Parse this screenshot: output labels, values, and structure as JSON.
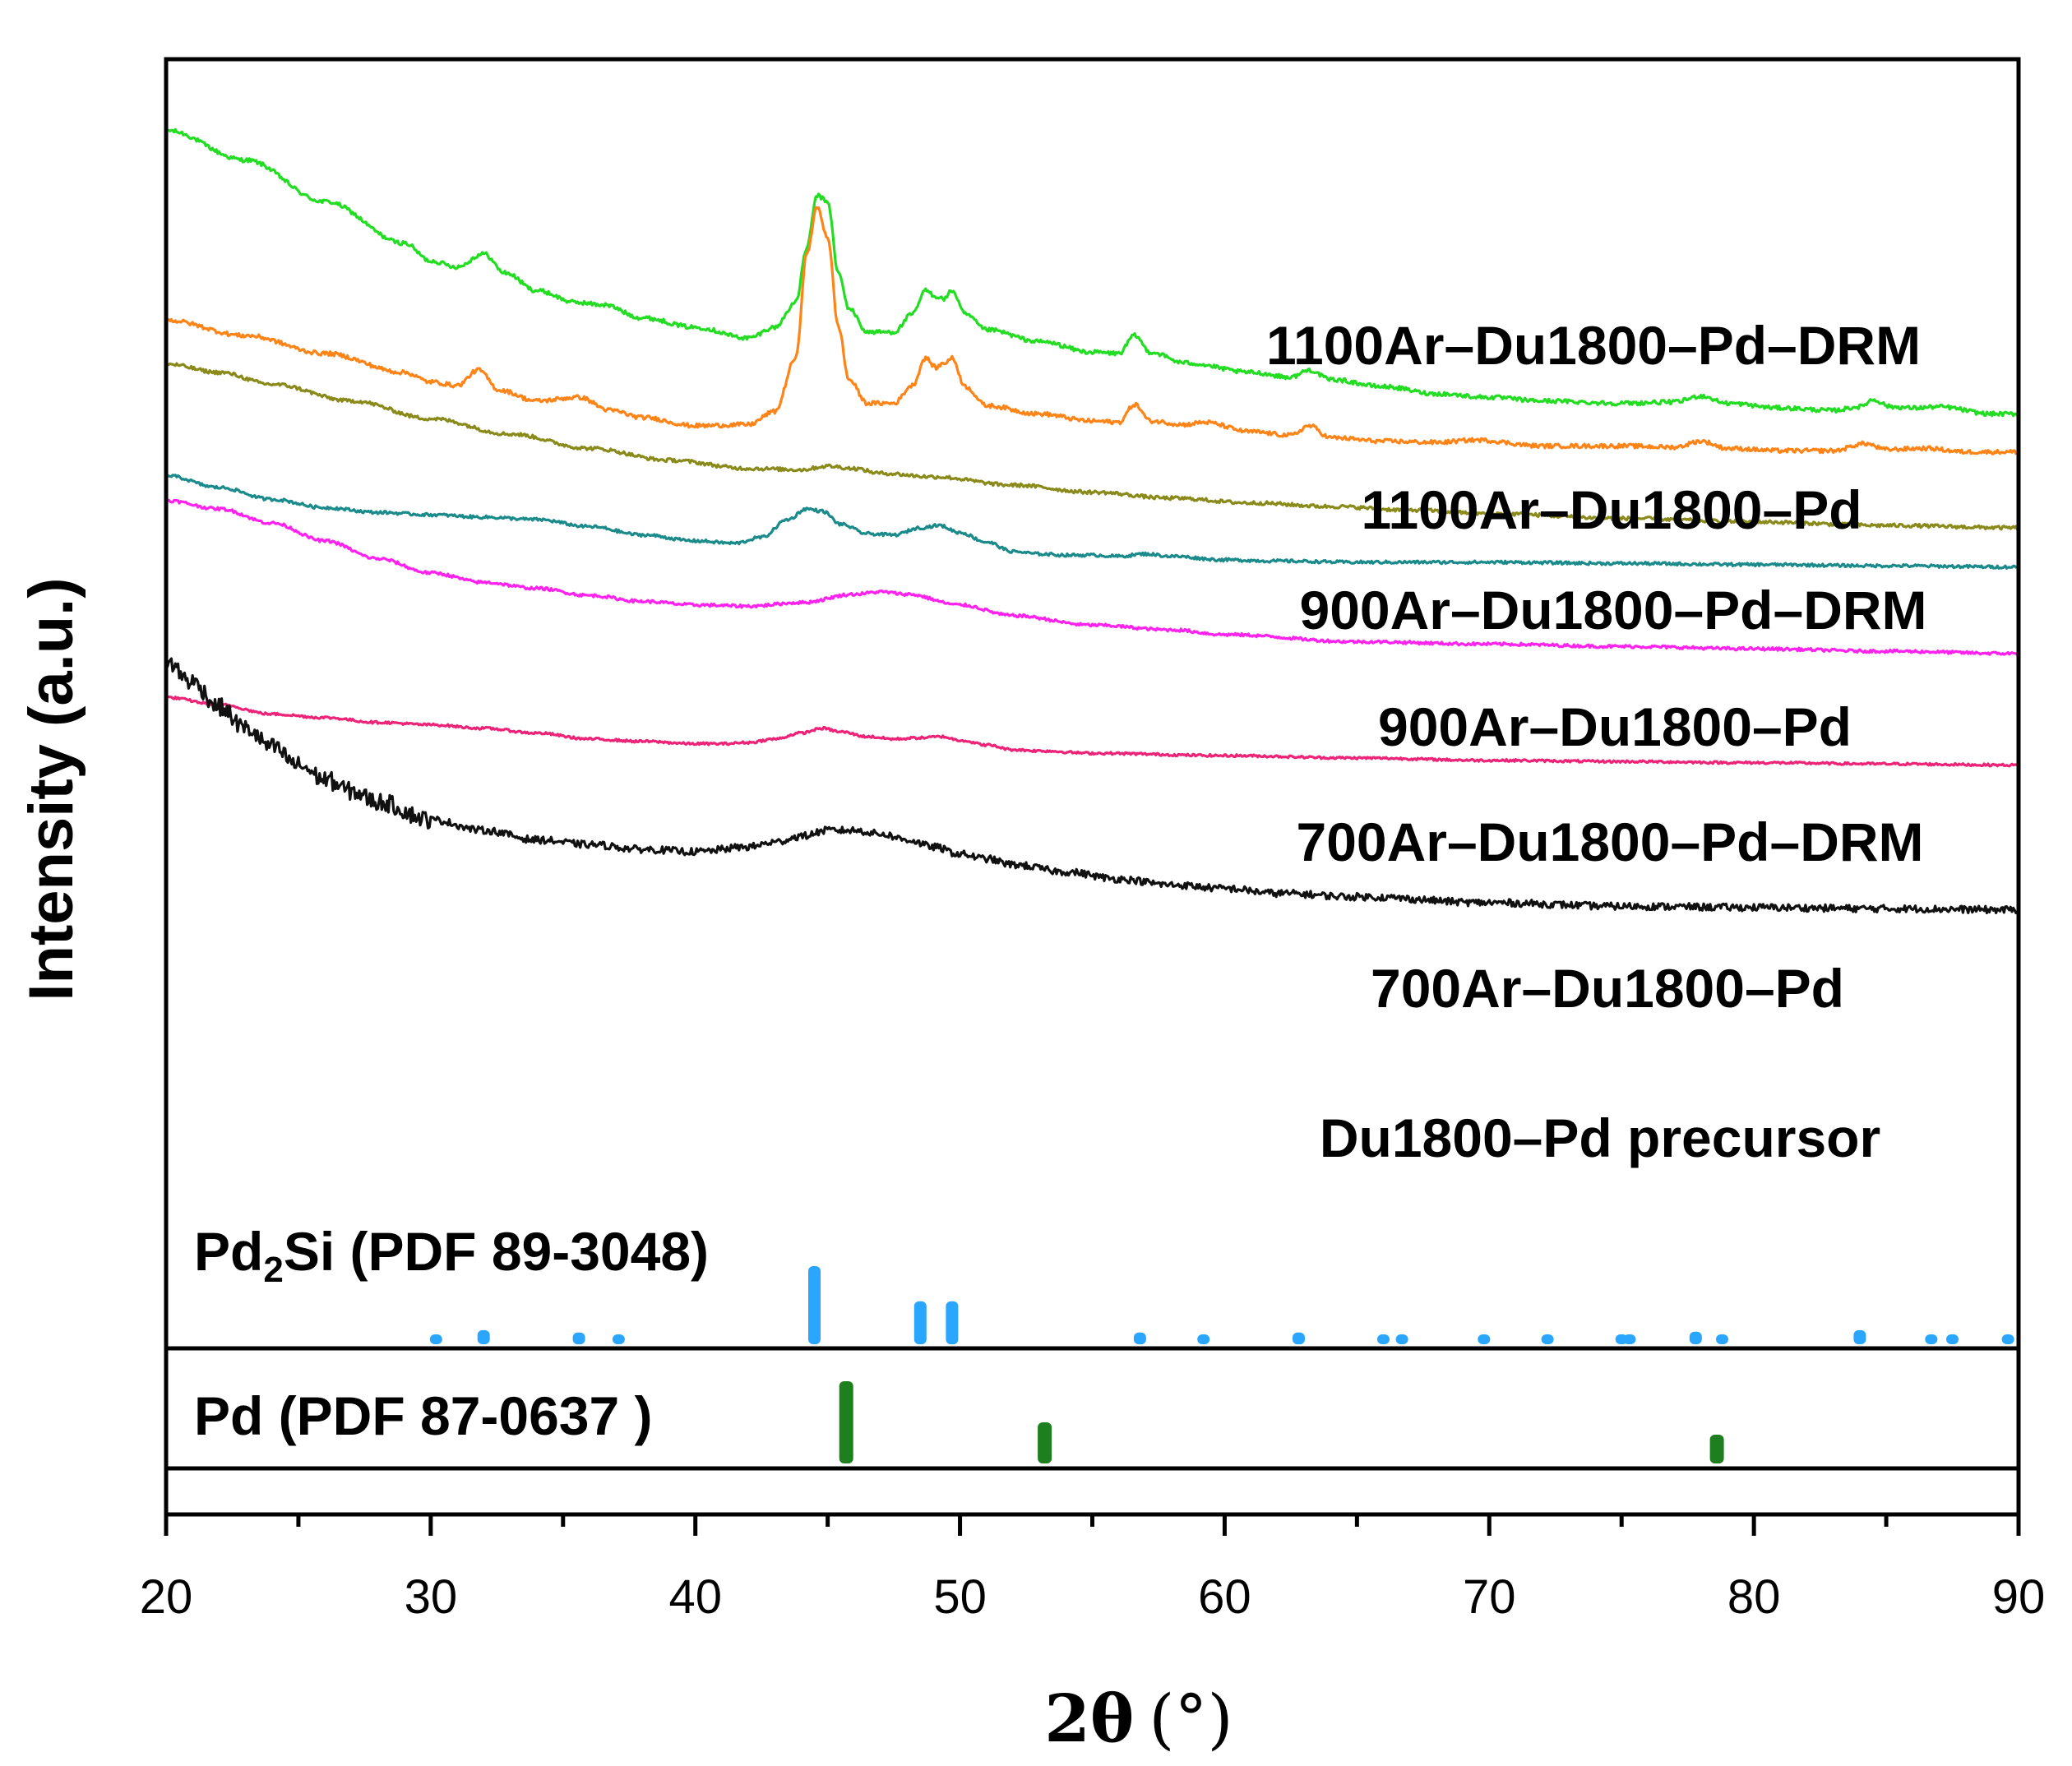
{
  "chart_data": {
    "type": "line",
    "title": "",
    "xlabel_main": "2θ",
    "xlabel_unit": "(°)",
    "ylabel": "Intensity (a.u.)",
    "xlim": [
      20,
      90
    ],
    "ylim": [
      0,
      100
    ],
    "xticks": [
      20,
      30,
      40,
      50,
      60,
      70,
      80,
      90
    ],
    "grid": false,
    "series": [
      {
        "name": "1100Ar–Du1800–Pd–DRM",
        "color": "#22dd22",
        "noise": 0.35,
        "x": [
          20,
          23,
          26,
          29,
          30,
          31,
          32,
          32.8,
          34,
          35.5,
          36.5,
          38,
          40,
          42,
          43,
          43.8,
          44.2,
          44.6,
          45,
          45.4,
          45.8,
          46.5,
          47.5,
          48.2,
          48.7,
          49.1,
          49.4,
          49.7,
          50.2,
          51,
          53,
          55,
          56,
          56.6,
          57.2,
          58.5,
          61,
          62.5,
          63.2,
          64,
          66,
          68,
          70,
          72,
          75,
          77,
          78,
          79,
          81,
          83,
          84,
          84.5,
          85.2,
          86,
          87,
          89,
          90
        ],
        "y": [
          94,
          91.5,
          88,
          84.5,
          83,
          82.5,
          83.6,
          82,
          80.5,
          79.5,
          79.3,
          78.2,
          77.4,
          76.5,
          77.4,
          79.5,
          84,
          88.5,
          88,
          82,
          79,
          77,
          77,
          78.5,
          80.5,
          80,
          79.8,
          80.5,
          78.5,
          77.2,
          76.2,
          75.3,
          75.2,
          76.7,
          75.3,
          74.4,
          73.6,
          73.2,
          73.8,
          73,
          72.4,
          71.8,
          71.5,
          71.2,
          71,
          71.1,
          71.6,
          71,
          70.6,
          70.4,
          70.7,
          71.3,
          70.7,
          70.6,
          70.7,
          70.1,
          70.1
        ]
      },
      {
        "name": "1100Ar–Du1800–Pd",
        "color": "#ff8418",
        "noise": 0.35,
        "x": [
          20,
          23,
          26,
          29,
          30,
          31,
          31.8,
          32.6,
          34,
          35.6,
          36.8,
          38,
          40,
          42,
          43,
          43.8,
          44.2,
          44.6,
          45,
          45.4,
          45.8,
          46.5,
          47.5,
          48.2,
          48.7,
          49.1,
          49.4,
          49.7,
          50.2,
          51,
          53,
          55,
          56,
          56.6,
          57.2,
          58.5,
          59.2,
          61,
          62.5,
          63.2,
          64,
          66,
          68,
          69.5,
          72,
          75,
          77,
          78,
          79,
          81,
          83,
          84.2,
          85,
          86.5,
          88,
          90
        ],
        "y": [
          78,
          76.7,
          75.2,
          73.6,
          72.8,
          72.5,
          73.8,
          72.1,
          71.2,
          71.5,
          70.4,
          69.8,
          69.1,
          69.2,
          70.3,
          74.8,
          83.5,
          87.5,
          85,
          77.5,
          73,
          71,
          71,
          72.5,
          74.8,
          74,
          74.4,
          74.8,
          72.4,
          70.8,
          70.1,
          69.5,
          69.4,
          70.9,
          69.5,
          69.2,
          69.4,
          68.6,
          68.3,
          69.1,
          68.1,
          67.8,
          67.7,
          67.9,
          67.4,
          67.4,
          67.3,
          67.8,
          67.2,
          67,
          67,
          67.6,
          67.1,
          67.2,
          66.9,
          66.9
        ]
      },
      {
        "name": "900Ar–Du1800–Pd–DRM",
        "color": "#8a8a1a",
        "noise": 0.3,
        "x": [
          20,
          22,
          24,
          27,
          30,
          33,
          36,
          39,
          42,
          44,
          45,
          46,
          47,
          49,
          52,
          55,
          58,
          61,
          64,
          67,
          70,
          75,
          80,
          85,
          90
        ],
        "y": [
          74.3,
          73.6,
          72.6,
          71.2,
          69.7,
          68.4,
          67.2,
          66.2,
          65.5,
          65.4,
          65.7,
          65.5,
          65.1,
          64.8,
          64.1,
          63.5,
          63,
          62.6,
          62.3,
          62,
          61.7,
          61.3,
          61,
          60.7,
          60.5
        ]
      },
      {
        "name": "900Ar–Du1800–Pd",
        "color": "#1a8a8a",
        "noise": 0.25,
        "x": [
          20,
          22,
          24,
          26,
          28,
          30,
          32,
          34,
          36,
          38,
          40,
          41.5,
          42.5,
          43.5,
          44.2,
          44.8,
          45.5,
          46.5,
          47.5,
          48.5,
          49.2,
          50,
          51,
          52,
          53,
          54,
          55,
          56,
          57,
          58,
          60,
          62,
          65,
          70,
          75,
          80,
          85,
          90
        ],
        "y": [
          64.9,
          63.9,
          62.9,
          62.2,
          61.8,
          61.6,
          61.4,
          61.2,
          60.6,
          59.9,
          59.4,
          59.2,
          59.7,
          61.2,
          62.1,
          61.9,
          60.8,
          60,
          59.9,
          60.5,
          60.7,
          60.1,
          59.3,
          58.5,
          58.3,
          58.2,
          58.2,
          58.1,
          58.3,
          58.1,
          57.8,
          57.7,
          57.6,
          57.6,
          57.5,
          57.4,
          57.3,
          57.2
        ]
      },
      {
        "name": "700Ar–Du1800–Pd–DRM",
        "color": "#ff22ee",
        "noise": 0.25,
        "x": [
          20,
          22,
          24,
          26,
          28,
          30,
          32,
          34,
          36,
          38,
          40,
          42,
          44,
          46,
          47,
          48,
          50,
          52,
          55,
          58,
          60,
          65,
          70,
          75,
          80,
          85,
          90
        ],
        "y": [
          62.8,
          62.1,
          60.9,
          59.4,
          57.9,
          56.7,
          55.9,
          55.4,
          54.8,
          54.3,
          54,
          53.9,
          54.2,
          54.9,
          55.1,
          54.9,
          54,
          53.1,
          52.3,
          51.9,
          51.5,
          50.9,
          50.7,
          50.5,
          50.3,
          50.1,
          49.9
        ]
      },
      {
        "name": "700Ar–Du1800–Pd",
        "color": "#ee2277",
        "noise": 0.2,
        "x": [
          20,
          22,
          24,
          26,
          28,
          30,
          32,
          34,
          36,
          38,
          40,
          41,
          42,
          43,
          44,
          44.8,
          45.5,
          46.5,
          47.5,
          48.5,
          49.3,
          50,
          51,
          52,
          53,
          55,
          60,
          65,
          70,
          75,
          80,
          85,
          90
        ],
        "y": [
          46.2,
          45.6,
          44.8,
          44.5,
          44.1,
          43.9,
          43.6,
          43.2,
          42.7,
          42.5,
          42.3,
          42.3,
          42.4,
          42.7,
          43.2,
          43.6,
          43.3,
          42.9,
          42.7,
          42.8,
          42.9,
          42.6,
          42.2,
          41.8,
          41.7,
          41.5,
          41.3,
          41.1,
          40.9,
          40.8,
          40.7,
          40.6,
          40.5
        ]
      },
      {
        "name": "Du1800–Pd precursor",
        "color": "#111111",
        "noise": 0.6,
        "x": [
          20,
          21,
          22,
          23,
          24,
          25,
          26,
          27,
          28,
          30,
          32,
          34,
          36,
          38,
          40,
          42,
          43,
          44,
          45,
          46,
          47,
          48,
          49,
          50,
          51,
          52,
          54,
          56,
          58,
          60,
          62,
          65,
          70,
          75,
          80,
          85,
          90
        ],
        "y": [
          49.2,
          47.5,
          45.4,
          43.6,
          42,
          40.5,
          39.3,
          38.3,
          37.4,
          35.9,
          35,
          34.2,
          33.8,
          33.4,
          33.2,
          33.6,
          34,
          34.5,
          35,
          35,
          34.7,
          34.2,
          33.6,
          33,
          32.6,
          32.1,
          31.5,
          30.9,
          30.4,
          30.1,
          29.7,
          29.4,
          28.9,
          28.6,
          28.5,
          28.4,
          28.3
        ]
      }
    ],
    "series_labels": [
      "1100Ar–Du1800–Pd–DRM",
      "1100Ar–Du1800–Pd",
      "900Ar–Du1800–Pd–DRM",
      "900Ar–Du1800–Pd",
      "700Ar–Du1800–Pd–DRM",
      "700Ar–Du1800–Pd",
      "Du1800–Pd precursor"
    ],
    "reference_patterns": [
      {
        "label_main": "Pd",
        "label_sub": "2",
        "label_rest": "Si (PDF 89-3048)",
        "color": "#2aa6ff",
        "peaks": [
          30.2,
          32,
          35.6,
          37.1,
          44.5,
          48.5,
          49.7,
          56.8,
          59.2,
          62.8,
          66,
          66.7,
          69.8,
          72.2,
          75,
          75.3,
          77.8,
          78.8,
          84,
          86.7,
          87.5,
          89.6
        ],
        "heights": [
          8,
          18,
          15,
          10,
          100,
          55,
          55,
          15,
          11,
          15,
          8,
          8,
          12,
          9,
          9,
          9,
          16,
          10,
          18,
          10,
          10,
          12
        ]
      },
      {
        "label_main": "Pd (PDF 87-0637 )",
        "label_sub": "",
        "label_rest": "",
        "color": "#1e7f1e",
        "peaks": [
          45.7,
          53.2,
          78.6
        ],
        "heights": [
          100,
          50,
          35
        ]
      }
    ]
  }
}
